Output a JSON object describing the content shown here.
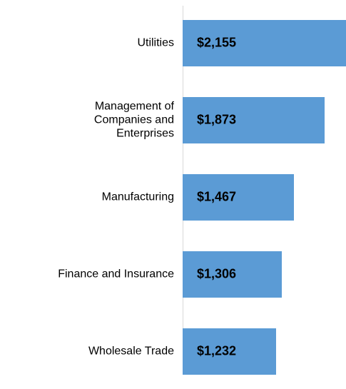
{
  "chart_data": {
    "type": "bar",
    "orientation": "horizontal",
    "categories": [
      "Utilities",
      "Management of\nCompanies and\nEnterprises",
      "Manufacturing",
      "Finance and Insurance",
      "Wholesale Trade"
    ],
    "values": [
      2155,
      1873,
      1467,
      1306,
      1232
    ],
    "value_labels": [
      "$2,155",
      "$1,873",
      "$1,467",
      "$1,306",
      "$1,232"
    ],
    "color": "#5b9bd5",
    "xlim": [
      0,
      2155
    ]
  }
}
